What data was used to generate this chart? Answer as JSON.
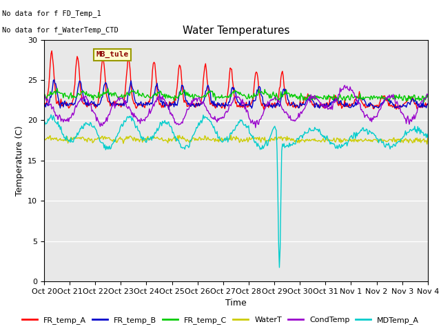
{
  "title": "Water Temperatures",
  "xlabel": "Time",
  "ylabel": "Temperature (C)",
  "ylim": [
    0,
    30
  ],
  "plot_bg_color": "#e8e8e8",
  "fig_bg_color": "#ffffff",
  "annotations": [
    "No data for f FD_Temp_1",
    "No data for f_WaterTemp_CTD"
  ],
  "legend_title": "MB_tule",
  "series_colors": {
    "FR_temp_A": "#ff0000",
    "FR_temp_B": "#0000cc",
    "FR_temp_C": "#00cc00",
    "WaterT": "#cccc00",
    "CondTemp": "#9900cc",
    "MDTemp_A": "#00cccc"
  },
  "xtick_labels": [
    "Oct 20",
    "Oct 21",
    "Oct 22",
    "Oct 23",
    "Oct 24",
    "Oct 25",
    "Oct 26",
    "Oct 27",
    "Oct 28",
    "Oct 29",
    "Oct 30",
    "Oct 31",
    "Nov 1",
    "Nov 2",
    "Nov 3",
    "Nov 4"
  ],
  "ytick_labels": [
    "0",
    "5",
    "10",
    "15",
    "20",
    "25",
    "30"
  ],
  "ytick_values": [
    0,
    5,
    10,
    15,
    20,
    25,
    30
  ],
  "n_points": 500,
  "title_fontsize": 11,
  "axis_label_fontsize": 9,
  "tick_fontsize": 8
}
